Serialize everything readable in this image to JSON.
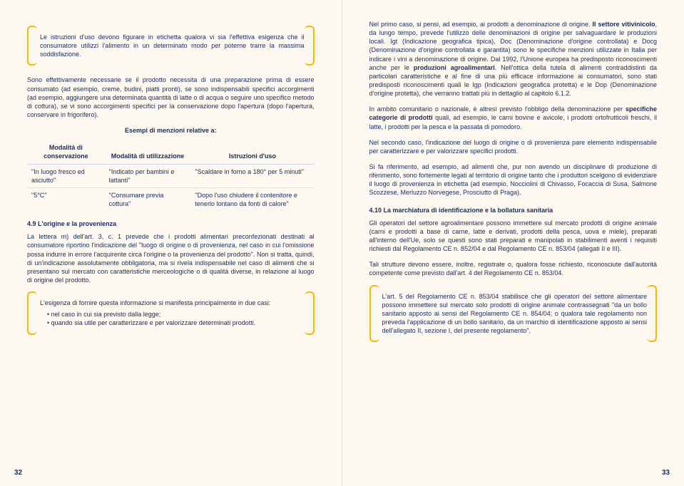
{
  "colors": {
    "background": "#fdf8f0",
    "text": "#1a2b5c",
    "bracket": "#f5b800",
    "rule": "#dce4f0"
  },
  "left": {
    "callout1": "Le istruzioni d'uso devono figurare in etichetta qualora vi sia l'effettiva esigenza che il consumatore utilizzi l'alimento in un determinato modo per poterne trarre la massima soddisfazione.",
    "para1": "Sono effettivamente necessarie se il prodotto necessita di una preparazione prima di essere consumato (ad esempio, creme, budini, piatti pronti), se sono indispensabili specifici accorgimenti (ad esempio, aggiungere una determinata quantità di latte o di acqua o seguire uno specifico metodo di cottura), se vi sono accorgimenti specifici per la conservazione dopo l'apertura (dopo l'apertura, conservare in frigorifero).",
    "table_title": "Esempi di menzioni relative a:",
    "table": {
      "headers": [
        "Modalità di conservazione",
        "Modalità di utilizzazione",
        "Istruzioni d'uso"
      ],
      "rows": [
        [
          "\"In luogo fresco ed asciutto\"",
          "\"Indicato per bambini e lattanti\"",
          "\"Scaldare in forno a 180° per 5 minuti\""
        ],
        [
          "\"5°C\"",
          "\"Consumare previa cottura\"",
          "\"Dopo l'uso chiudere il contenitore e tenerlo lontano da fonti di calore\""
        ]
      ]
    },
    "heading49": "4.9 L'origine e la provenienza",
    "para49": "La lettera m) dell'art. 3, c. 1 prevede che i prodotti alimentari preconfezionati destinati al consumatore riportino l'indicazione del \"luogo di origine o di provenienza, nel caso in cui l'omissione possa indurre in errore l'acquirente circa l'origine o la provenienza del prodotto\". Non si tratta, quindi, di un'indicazione assolutamente obbligatoria, ma si rivela indispensabile nel caso di alimenti che si presentano sul mercato con caratteristiche merceologiche o di qualità diverse, in relazione al luogo di origine del prodotto.",
    "callout2_intro": "L'esigenza di fornire questa informazione si manifesta principalmente in due casi:",
    "callout2_items": [
      "nel caso in cui sia previsto dalla legge;",
      "quando sia utile per caratterizzare e per valorizzare determinati prodotti."
    ],
    "pagenum": "32"
  },
  "right": {
    "para_a": "Nel primo caso, si pensi, ad esempio, ai prodotti a denominazione di origine. ",
    "bold_a": "Il settore vitivinicolo",
    "para_a2": ", da lungo tempo, prevede l'utilizzo delle denominazioni di origine per salvaguardare le produzioni locali. Igt (Indicazione geografica tipica), Doc (Denominazione d'origine controllata) e Docg (Denominazione d'origine controllata e garantita) sono le specifiche menzioni utilizzate in Italia per indicare i vini a denominazione di origine. Dal 1992, l'Unione europea ha predisposto riconoscimenti anche per le ",
    "bold_b": "produzioni agroalimentari",
    "para_a3": ". Nell'ottica della tutela di alimenti contraddistinti da particolari caratteristiche e al fine di una più efficace informazione ai consumatori, sono stati predisposti riconoscimenti quali le Igp (Indicazioni geografica protetta) e le Dop (Denominazione d'origine protetta), che verranno trattati più in dettaglio al capitolo 6.1.2.",
    "para_b1": "In ambito comunitario o nazionale, è altresì previsto l'obbligo della denominazione per ",
    "bold_c": "specifiche categorie di prodotti",
    "para_b2": " quali, ad esempio, le carni bovine e avicole, i prodotti ortofrutticoli freschi, il latte, i prodotti per la pesca e la passata di pomodoro.",
    "para_c": "Nel secondo caso, l'indicazione del luogo di origine o di provenienza pare elemento indispensabile per caratterizzare e per valorizzare specifici prodotti.",
    "para_d": "Si fa riferimento, ad esempio, ad alimenti che, pur non avendo un disciplinare di produzione di riferimento, sono fortemente legati al territorio di origine tanto che i produttori scelgono di evidenziare il luogo di provenienza in etichetta (ad esempio, Nocciolini di Chivasso, Focaccia di Susa, Salmone Scozzese, Merluzzo Norvegese, Prosciutto di Praga).",
    "heading410": "4.10 La marchiatura di identificazione e la bollatura sanitaria",
    "para410": "Gli operatori del settore agroalimentare possono immettere sul mercato prodotti di origine animale (carni e prodotti a base di carne, latte e derivati, prodotti della pesca, uova e miele), preparati all'interno dell'Ue, solo se questi sono stati preparati e manipolati in stabilimenti aventi i requisiti richiesti dal Regolamento CE n. 852/04 e dal Regolamento CE n. 853/04 (allegati II e III).",
    "para410b": "Tali strutture devono essere, inoltre, registrate o, qualora fosse richiesto, riconosciute dall'autorità competente come previsto dall'art. 4 del Regolamento CE n. 853/04.",
    "callout3": "L'art. 5 del Regolamento CE n. 853/04 stabilisce che gli operatori del settore alimentare possono immettere sul mercato solo prodotti di origine animale contrassegnati \"da un bollo sanitario apposto ai sensi del Regolamento CE n. 854/04; o qualora tale regolamento non preveda l'applicazione di un bollo sanitario, da un marchio di identificazione apposto ai sensi dell'allegato II, sezione I, del presente regolamento\".",
    "pagenum": "33"
  }
}
